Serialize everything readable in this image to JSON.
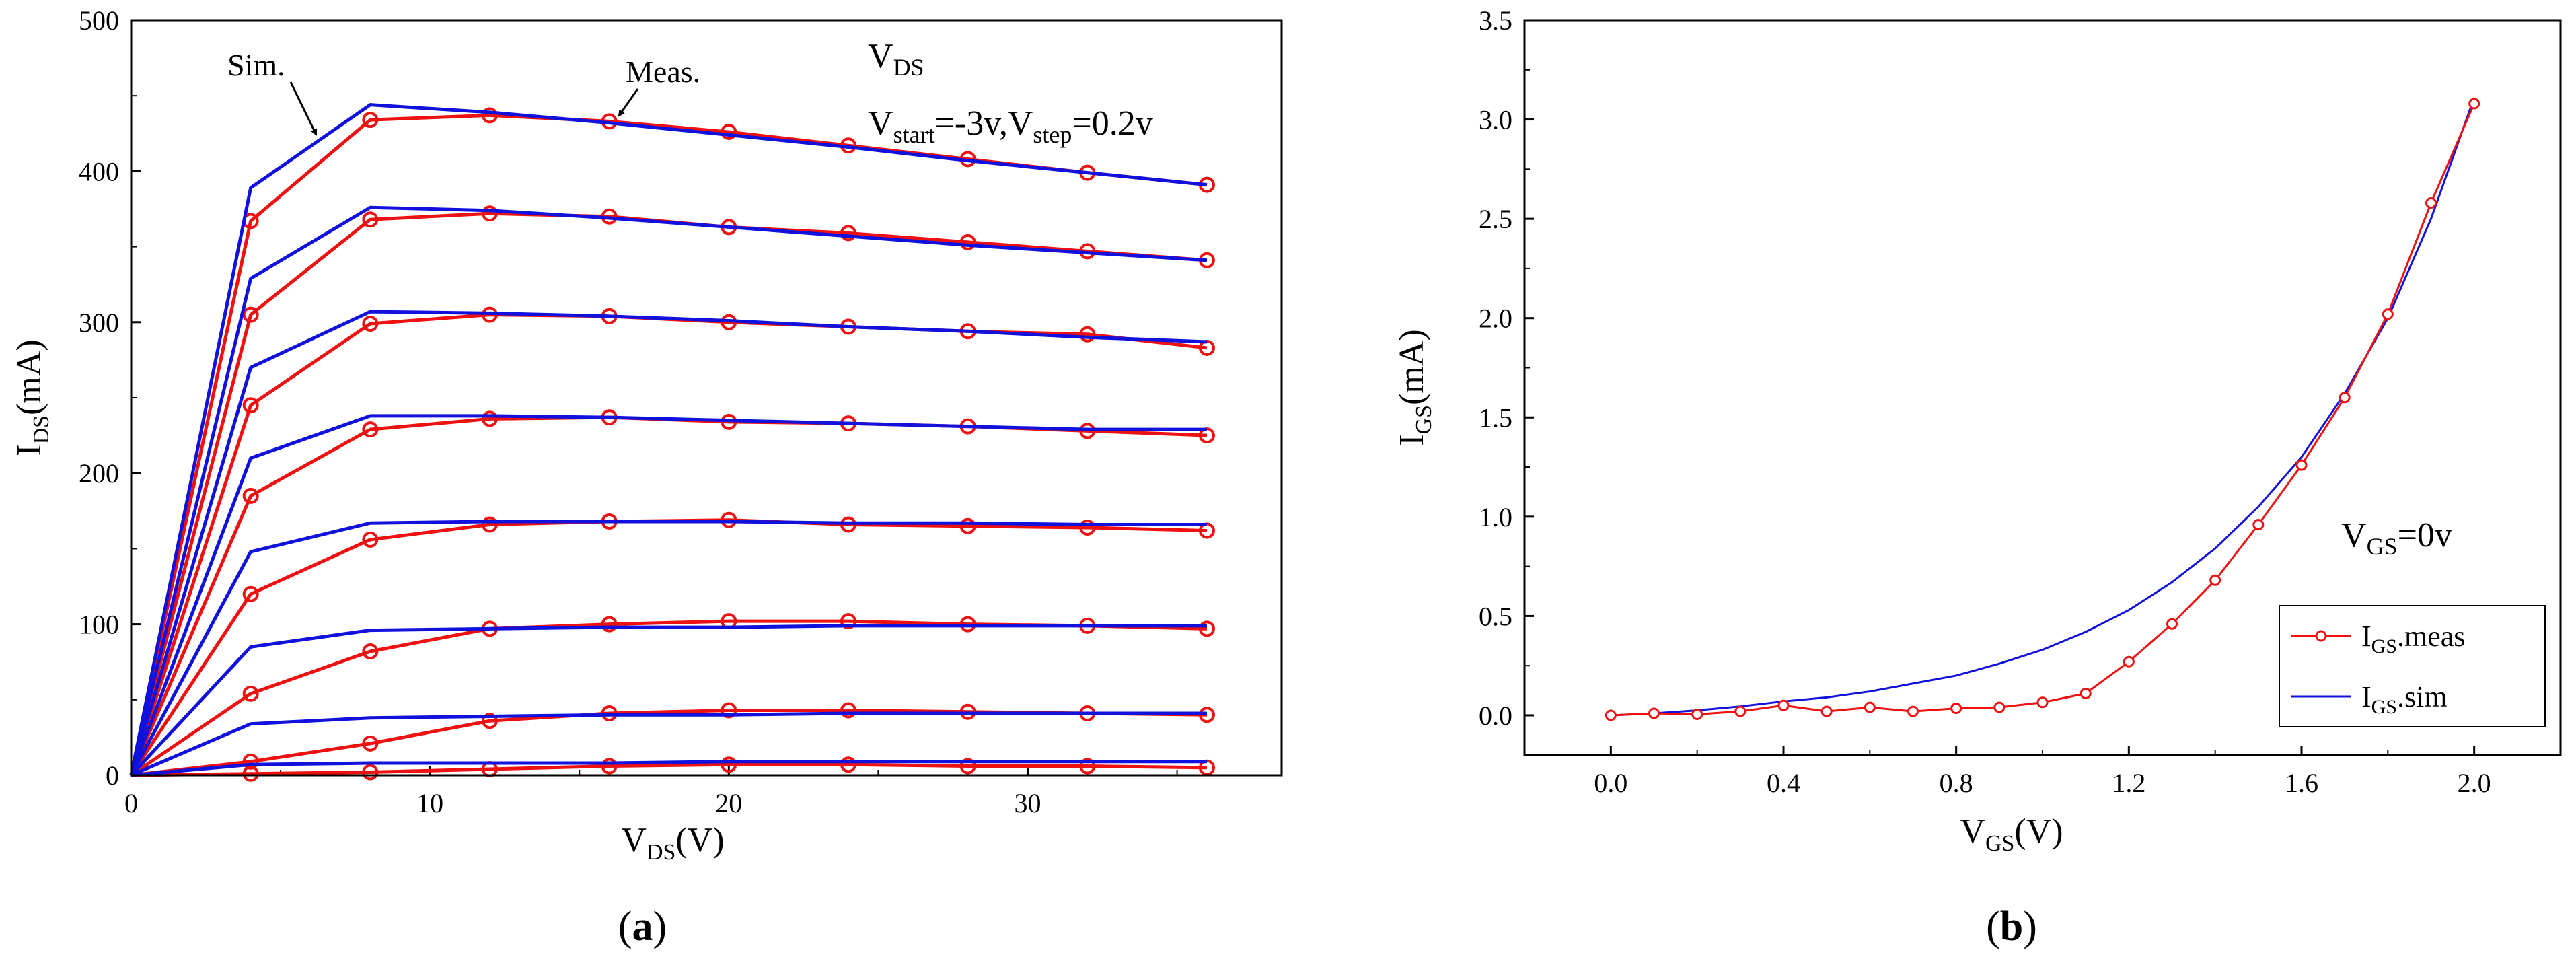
{
  "chart_data": [
    {
      "type": "line",
      "panel_label": "(a)",
      "xlabel": {
        "main": "V",
        "sub": "DS",
        "tail": "(V)"
      },
      "ylabel": {
        "main": "I",
        "sub": "DS",
        "tail": "(mA)"
      },
      "xlim": [
        0,
        38.5
      ],
      "ylim": [
        0,
        500
      ],
      "xticks": [
        0,
        10,
        20,
        30
      ],
      "yticks": [
        0,
        100,
        200,
        300,
        400,
        500
      ],
      "colors": {
        "meas": "#ee1111",
        "sim": "#1111dd"
      },
      "annotations": {
        "sim_label": "Sim.",
        "meas_label": "Meas.",
        "vds": {
          "main": "V",
          "sub": "DS"
        },
        "sweep": {
          "v1": "V",
          "s1": "start",
          "t1": "=-3v,",
          "v2": "V",
          "s2": "step",
          "t2": "=0.2v"
        }
      },
      "x": [
        0,
        4,
        8,
        12,
        16,
        20,
        24,
        28,
        32,
        36
      ],
      "series": [
        {
          "kind": "meas",
          "values": [
            0,
            367,
            434,
            437,
            433,
            426,
            417,
            408,
            399,
            391
          ]
        },
        {
          "kind": "sim",
          "values": [
            0,
            389,
            444,
            439,
            432,
            424,
            416,
            407,
            399,
            391
          ]
        },
        {
          "kind": "meas",
          "values": [
            0,
            305,
            368,
            372,
            370,
            363,
            359,
            353,
            347,
            341
          ]
        },
        {
          "kind": "sim",
          "values": [
            0,
            329,
            376,
            374,
            369,
            363,
            357,
            351,
            346,
            341
          ]
        },
        {
          "kind": "meas",
          "values": [
            0,
            245,
            299,
            305,
            304,
            300,
            297,
            294,
            292,
            283
          ]
        },
        {
          "kind": "sim",
          "values": [
            0,
            270,
            307,
            306,
            304,
            301,
            297,
            294,
            290,
            287
          ]
        },
        {
          "kind": "meas",
          "values": [
            0,
            185,
            229,
            236,
            237,
            234,
            233,
            231,
            228,
            225
          ]
        },
        {
          "kind": "sim",
          "values": [
            0,
            210,
            238,
            238,
            237,
            235,
            233,
            231,
            229,
            229
          ]
        },
        {
          "kind": "meas",
          "values": [
            0,
            120,
            156,
            166,
            168,
            169,
            166,
            165,
            164,
            162
          ]
        },
        {
          "kind": "sim",
          "values": [
            0,
            148,
            167,
            168,
            168,
            168,
            167,
            167,
            166,
            166
          ]
        },
        {
          "kind": "meas",
          "values": [
            0,
            54,
            82,
            97,
            100,
            102,
            102,
            100,
            99,
            97
          ]
        },
        {
          "kind": "sim",
          "values": [
            0,
            85,
            96,
            97,
            98,
            98,
            99,
            99,
            99,
            99
          ]
        },
        {
          "kind": "meas",
          "values": [
            0,
            9,
            21,
            36,
            41,
            43,
            43,
            42,
            41,
            40
          ]
        },
        {
          "kind": "sim",
          "values": [
            0,
            34,
            38,
            39,
            40,
            40,
            41,
            41,
            41,
            41
          ]
        },
        {
          "kind": "meas",
          "values": [
            0,
            1,
            2,
            4,
            6,
            7,
            7,
            6,
            6,
            5
          ]
        },
        {
          "kind": "sim",
          "values": [
            0,
            7,
            8,
            8,
            8,
            9,
            9,
            9,
            9,
            9
          ]
        }
      ]
    },
    {
      "type": "line",
      "panel_label": "(b)",
      "xlabel": {
        "main": "V",
        "sub": "GS",
        "tail": "(V)"
      },
      "ylabel": {
        "main": "I",
        "sub": "GS",
        "tail": "(mA)"
      },
      "xlim": [
        -0.2,
        2.2
      ],
      "ylim": [
        -0.2,
        3.5
      ],
      "xticks": [
        0.0,
        0.4,
        0.8,
        1.2,
        1.6,
        2.0
      ],
      "xtick_labels": [
        "0.0",
        "0.4",
        "0.8",
        "1.2",
        "1.6",
        "2.0"
      ],
      "yticks": [
        0.0,
        0.5,
        1.0,
        1.5,
        2.0,
        2.5,
        3.0,
        3.5
      ],
      "ytick_labels": [
        "0.0",
        "0.5",
        "1.0",
        "1.5",
        "2.0",
        "2.5",
        "3.0",
        "3.5"
      ],
      "annotation": {
        "main": "V",
        "sub": "GS",
        "tail": "=0v"
      },
      "legend_position": "bottom-right",
      "series": [
        {
          "name_main": "I",
          "name_sub": "GS",
          "name_tail": ".meas",
          "color": "#ee1111",
          "marker": "circle",
          "x": [
            0.0,
            0.1,
            0.2,
            0.3,
            0.4,
            0.5,
            0.6,
            0.7,
            0.8,
            0.9,
            1.0,
            1.1,
            1.2,
            1.3,
            1.4,
            1.5,
            1.6,
            1.7,
            1.8,
            1.9,
            2.0
          ],
          "y": [
            0.0,
            0.01,
            0.005,
            0.02,
            0.05,
            0.02,
            0.04,
            0.02,
            0.035,
            0.04,
            0.065,
            0.11,
            0.27,
            0.46,
            0.68,
            0.96,
            1.26,
            1.6,
            2.02,
            2.58,
            3.08
          ]
        },
        {
          "name_main": "I",
          "name_sub": "GS",
          "name_tail": ".sim",
          "color": "#1111dd",
          "marker": "none",
          "x": [
            0.0,
            0.1,
            0.2,
            0.3,
            0.4,
            0.5,
            0.6,
            0.7,
            0.8,
            0.9,
            1.0,
            1.1,
            1.2,
            1.3,
            1.4,
            1.5,
            1.6,
            1.7,
            1.8,
            1.9,
            2.0
          ],
          "y": [
            0.0,
            0.01,
            0.025,
            0.045,
            0.07,
            0.09,
            0.12,
            0.16,
            0.2,
            0.26,
            0.33,
            0.42,
            0.53,
            0.67,
            0.84,
            1.05,
            1.3,
            1.62,
            2.0,
            2.5,
            3.11
          ]
        }
      ]
    }
  ]
}
